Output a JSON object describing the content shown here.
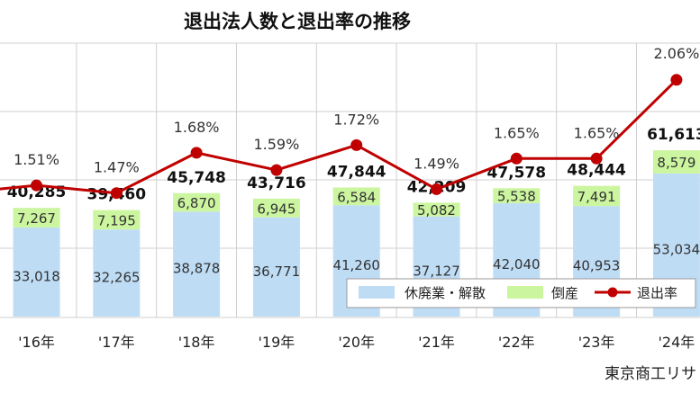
{
  "chart_data": {
    "type": "bar",
    "title": "退出法人数と退出率の推移",
    "source": "東京商工リサ",
    "categories": [
      "'16年",
      "'17年",
      "'18年",
      "'19年",
      "'20年",
      "'21年",
      "'22年",
      "'23年",
      "'24年"
    ],
    "series": [
      {
        "name": "休廃業・解散",
        "type": "bar",
        "stack": "total",
        "color": "#bfdcf5",
        "values": [
          33018,
          32265,
          38878,
          36771,
          41260,
          37127,
          42040,
          40953,
          53034
        ],
        "labels": [
          "33,018",
          "32,265",
          "38,878",
          "36,771",
          "41,260",
          "37,127",
          "42,040",
          "40,953",
          "53,034"
        ]
      },
      {
        "name": "倒産",
        "type": "bar",
        "stack": "total",
        "color": "#ccf5a0",
        "values": [
          7267,
          7195,
          6870,
          6945,
          6584,
          5082,
          5538,
          7491,
          8579
        ],
        "labels": [
          "7,267",
          "7,195",
          "6,870",
          "6,945",
          "6,584",
          "5,082",
          "5,538",
          "7,491",
          "8,579"
        ]
      },
      {
        "name": "退出率",
        "type": "line",
        "color": "#c00000",
        "values": [
          1.51,
          1.47,
          1.68,
          1.59,
          1.72,
          1.49,
          1.65,
          1.65,
          2.06
        ],
        "labels": [
          "1.51%",
          "1.47%",
          "1.68%",
          "1.59%",
          "1.72%",
          "1.49%",
          "1.65%",
          "1.65%",
          "2.06%"
        ]
      }
    ],
    "totals": [
      40285,
      39460,
      45748,
      43716,
      47844,
      42209,
      47578,
      48444,
      61613
    ],
    "total_labels": [
      "40,285",
      "39,460",
      "45,748",
      "43,716",
      "47,844",
      "42,209",
      "47,578",
      "48,444",
      "61,613"
    ],
    "bar_axis": {
      "min": 0,
      "max": 60000
    },
    "rate_axis": {
      "min": 1.2,
      "max": 2.1
    },
    "grid": true,
    "legend_position": "bottom-right"
  }
}
